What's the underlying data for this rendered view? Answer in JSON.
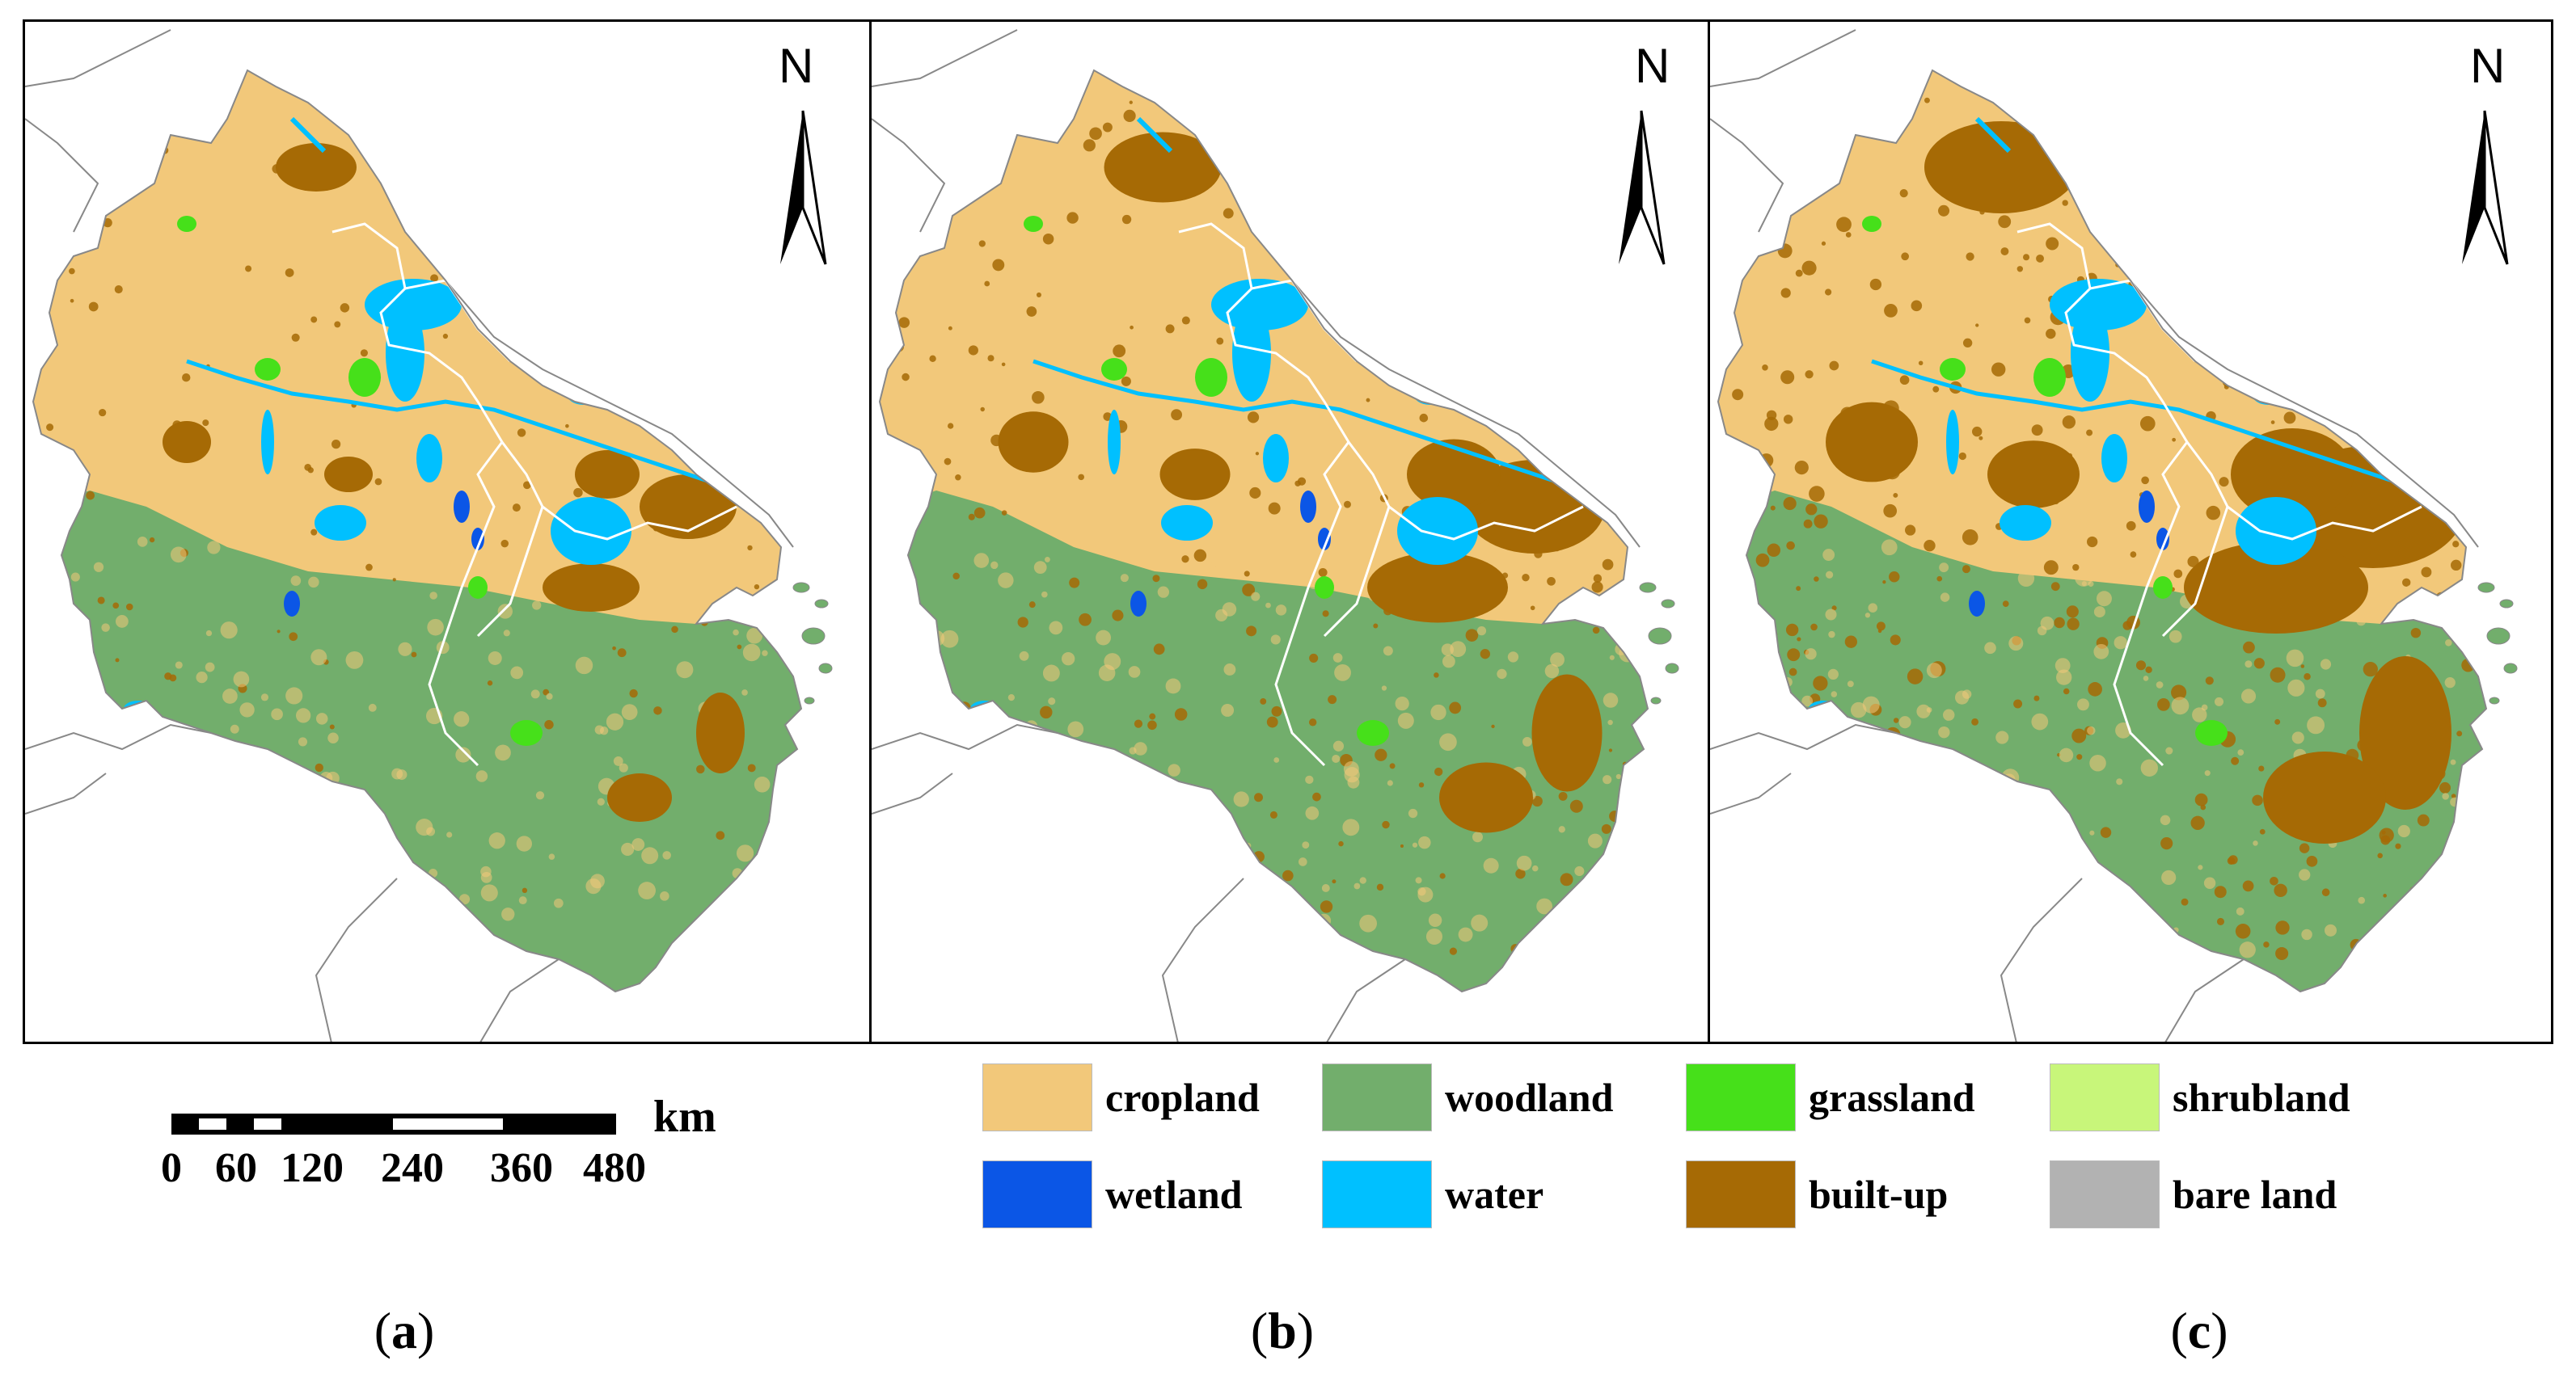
{
  "panels": [
    {
      "id": "a",
      "caption_letter": "a",
      "north_label": "N"
    },
    {
      "id": "b",
      "caption_letter": "b",
      "north_label": "N"
    },
    {
      "id": "c",
      "caption_letter": "c",
      "north_label": "N"
    }
  ],
  "scale_bar": {
    "unit": "km",
    "ticks": [
      "0",
      "60",
      "120",
      "240",
      "360",
      "480"
    ]
  },
  "legend": [
    {
      "label": "cropland",
      "color": "#f2c87a"
    },
    {
      "label": "woodland",
      "color": "#72ae6c"
    },
    {
      "label": "grassland",
      "color": "#46e01a"
    },
    {
      "label": "shrubland",
      "color": "#c8f67a"
    },
    {
      "label": "wetland",
      "color": "#0b56e6"
    },
    {
      "label": "water",
      "color": "#00c0ff"
    },
    {
      "label": "built-up",
      "color": "#a66a05"
    },
    {
      "label": "bare land",
      "color": "#b2b2b2"
    }
  ],
  "map_colors": {
    "boundary_outer": "#888888",
    "boundary_inner": "#ffffff"
  }
}
